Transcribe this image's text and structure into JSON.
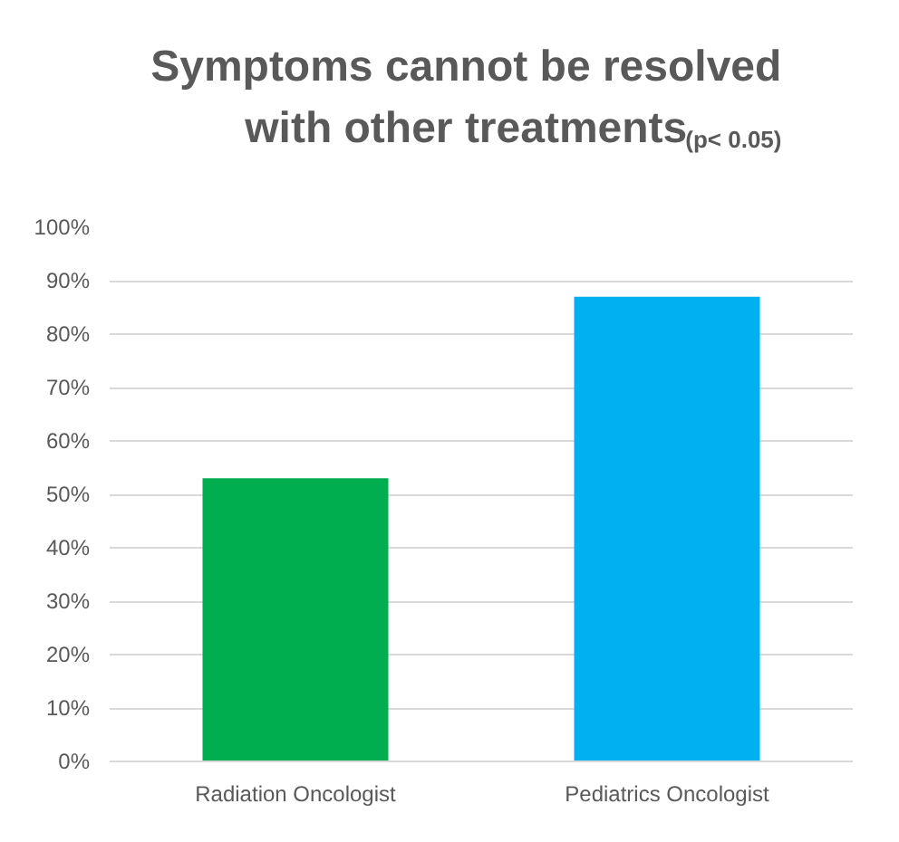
{
  "chart_data": {
    "type": "bar",
    "title": "Symptoms cannot be resolved with other treatments",
    "annotations": [
      "(p< 0.05)"
    ],
    "categories": [
      "Radiation Oncologist",
      "Pediatrics Oncologist"
    ],
    "values": [
      53,
      87
    ],
    "colors": [
      "#00ad4f",
      "#00b0f0"
    ],
    "ylim": [
      0,
      100
    ],
    "yticks": [
      {
        "value": 0,
        "label": "0%"
      },
      {
        "value": 10,
        "label": "10%"
      },
      {
        "value": 20,
        "label": "20%"
      },
      {
        "value": 30,
        "label": "30%"
      },
      {
        "value": 40,
        "label": "40%"
      },
      {
        "value": 50,
        "label": "50%"
      },
      {
        "value": 60,
        "label": "60%"
      },
      {
        "value": 70,
        "label": "70%"
      },
      {
        "value": 80,
        "label": "80%"
      },
      {
        "value": 90,
        "label": "90%"
      },
      {
        "value": 100,
        "label": "100%"
      }
    ],
    "grid": "y"
  }
}
